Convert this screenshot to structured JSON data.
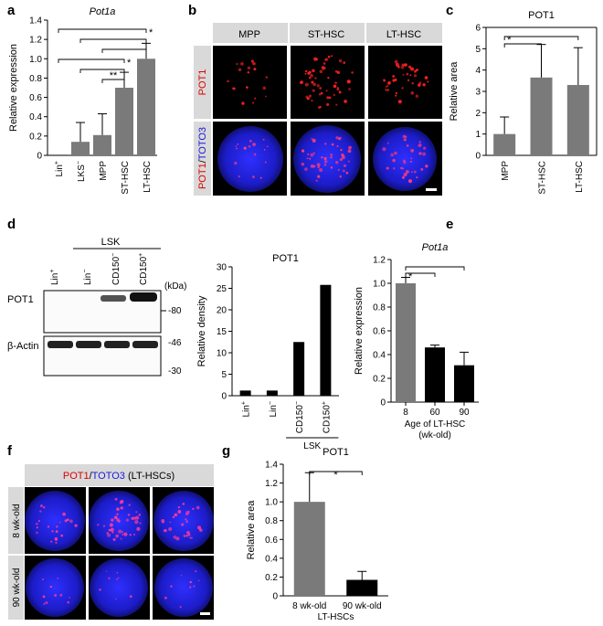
{
  "panel_letters": [
    "a",
    "b",
    "c",
    "d",
    "e",
    "f",
    "g"
  ],
  "colors": {
    "gray_bar": "#7a7a7a",
    "black_bar": "#000000",
    "header_gray": "#d9d9d9",
    "pot1_red": "#e00000",
    "toto3_blue": "#1a1adc"
  },
  "panel_b": {
    "columns": [
      "MPP",
      "ST-HSC",
      "LT-HSC"
    ],
    "row1_label": "POT1",
    "row2_label_red": "POT1",
    "row2_label_sep": "/",
    "row2_label_blue": "TOTO3"
  },
  "panel_d": {
    "lanes": [
      "Lin",
      "Lin",
      "CD150",
      "CD150"
    ],
    "lane_sup": [
      "+",
      "−",
      "−",
      "+"
    ],
    "group_label": "LSK",
    "kda_label": "(kDa)",
    "blot1_label": "POT1",
    "blot2_label": "β-Actin",
    "markers": [
      "80",
      "46",
      "30"
    ]
  },
  "panel_f": {
    "header_red": "POT1",
    "header_sep": "/",
    "header_blue": "TOTO3",
    "header_tail": " (LT-HSCs)",
    "rows": [
      "8 wk-old",
      "90 wk-old"
    ]
  },
  "chart_data": [
    {
      "panel": "a",
      "type": "bar",
      "title": "Pot1a",
      "categories": [
        "Lin+",
        "LKS−",
        "MPP",
        "ST-HSC",
        "LT-HSC"
      ],
      "category_main": [
        "Lin",
        "LKS",
        "MPP",
        "ST-HSC",
        "LT-HSC"
      ],
      "category_sup": [
        "+",
        "−",
        "",
        "",
        ""
      ],
      "values": [
        0.01,
        0.14,
        0.21,
        0.7,
        1.0
      ],
      "errors": [
        0.0,
        0.2,
        0.22,
        0.16,
        0.16
      ],
      "ylabel": "Relative expression",
      "ylim": [
        0,
        1.4
      ],
      "yticks": [
        "0",
        "0.2",
        "0.4",
        "0.6",
        "0.8",
        "1.0",
        "1.2",
        "1.4"
      ],
      "significance": [
        {
          "from": 0,
          "to": 4,
          "label": "*"
        },
        {
          "from": 1,
          "to": 4,
          "label": ""
        },
        {
          "from": 2,
          "to": 4,
          "label": ""
        },
        {
          "from": 0,
          "to": 3,
          "label": "*"
        },
        {
          "from": 1,
          "to": 3,
          "label": ""
        },
        {
          "from": 2,
          "to": 3,
          "label": "**"
        }
      ]
    },
    {
      "panel": "c",
      "type": "bar",
      "title": "POT1",
      "categories": [
        "MPP",
        "ST-HSC",
        "LT-HSC"
      ],
      "values": [
        1.0,
        3.65,
        3.3
      ],
      "errors": [
        0.8,
        1.55,
        1.75
      ],
      "ylabel": "Relative area",
      "ylim": [
        0,
        6
      ],
      "yticks": [
        "0",
        "1",
        "2",
        "3",
        "4",
        "5",
        "6"
      ],
      "significance": [
        {
          "from": 0,
          "to": 2,
          "label": "*"
        },
        {
          "from": 0,
          "to": 1,
          "label": ""
        }
      ]
    },
    {
      "panel": "d",
      "type": "bar",
      "title": "POT1",
      "categories": [
        "Lin+",
        "Lin−",
        "CD150−",
        "CD150+"
      ],
      "category_main": [
        "Lin",
        "Lin",
        "CD150",
        "CD150"
      ],
      "category_sup": [
        "+",
        "−",
        "−",
        "+"
      ],
      "group_label": "LSK",
      "values": [
        1.2,
        1.2,
        12.5,
        25.8
      ],
      "ylabel": "Relative density",
      "ylim": [
        0,
        30
      ],
      "yticks": [
        "0",
        "5",
        "10",
        "15",
        "20",
        "25",
        "30"
      ]
    },
    {
      "panel": "e",
      "type": "bar",
      "title": "Pot1a",
      "categories": [
        "8",
        "60",
        "90"
      ],
      "values": [
        1.0,
        0.46,
        0.31
      ],
      "errors": [
        0.05,
        0.02,
        0.11
      ],
      "bar_colors": [
        "gray",
        "black",
        "black"
      ],
      "xlabel": "Age of LT-HSC\n(wk-old)",
      "xlabel_lines": [
        "Age of LT-HSC",
        "(wk-old)"
      ],
      "ylabel": "Relative expression",
      "ylim": [
        0,
        1.2
      ],
      "yticks": [
        "0",
        "0.2",
        "0.4",
        "0.6",
        "0.8",
        "1.0",
        "1.2"
      ],
      "significance": [
        {
          "from": 0,
          "to": 2,
          "label": ""
        },
        {
          "from": 0,
          "to": 1,
          "label": "*"
        }
      ]
    },
    {
      "panel": "g",
      "type": "bar",
      "title": "POT1",
      "categories": [
        "8 wk-old",
        "90 wk-old"
      ],
      "values": [
        1.0,
        0.17
      ],
      "errors": [
        0.31,
        0.09
      ],
      "bar_colors": [
        "gray",
        "black"
      ],
      "xlabel": "LT-HSCs",
      "ylabel": "Relative area",
      "ylim": [
        0,
        1.4
      ],
      "yticks": [
        "0",
        "0.2",
        "0.4",
        "0.6",
        "0.8",
        "1.0",
        "1.2",
        "1.4"
      ],
      "significance": [
        {
          "from": 0,
          "to": 1,
          "label": "*"
        }
      ]
    }
  ]
}
